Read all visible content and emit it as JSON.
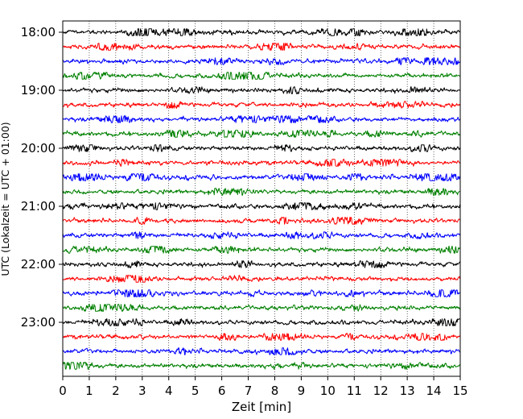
{
  "chart_data": {
    "type": "line",
    "title": "",
    "xlabel": "Zeit  [min]",
    "ylabel": "UTC (Lokalzeit = UTC + 01:00)",
    "xlim": [
      0,
      15
    ],
    "x_ticks": [
      "0",
      "1",
      "2",
      "3",
      "4",
      "5",
      "6",
      "7",
      "8",
      "9",
      "10",
      "11",
      "12",
      "13",
      "14",
      "15"
    ],
    "y_ticks": [
      {
        "label": "18:00",
        "row": 0
      },
      {
        "label": "19:00",
        "row": 4
      },
      {
        "label": "20:00",
        "row": 8
      },
      {
        "label": "21:00",
        "row": 12
      },
      {
        "label": "22:00",
        "row": 16
      },
      {
        "label": "23:00",
        "row": 20
      }
    ],
    "row_interval_minutes": 15,
    "rows": 24,
    "row_colors": [
      "#000000",
      "#ff0000",
      "#0000ff",
      "#008000"
    ],
    "grid": "vertical dotted",
    "series": [
      {
        "start": "18:00"
      },
      {
        "start": "18:15"
      },
      {
        "start": "18:30"
      },
      {
        "start": "18:45"
      },
      {
        "start": "19:00"
      },
      {
        "start": "19:15"
      },
      {
        "start": "19:30"
      },
      {
        "start": "19:45"
      },
      {
        "start": "20:00"
      },
      {
        "start": "20:15"
      },
      {
        "start": "20:30"
      },
      {
        "start": "20:45"
      },
      {
        "start": "21:00"
      },
      {
        "start": "21:15"
      },
      {
        "start": "21:30"
      },
      {
        "start": "21:45"
      },
      {
        "start": "22:00"
      },
      {
        "start": "22:15"
      },
      {
        "start": "22:30"
      },
      {
        "start": "22:45"
      },
      {
        "start": "23:00"
      },
      {
        "start": "23:15"
      },
      {
        "start": "23:30"
      },
      {
        "start": "23:45"
      }
    ]
  }
}
